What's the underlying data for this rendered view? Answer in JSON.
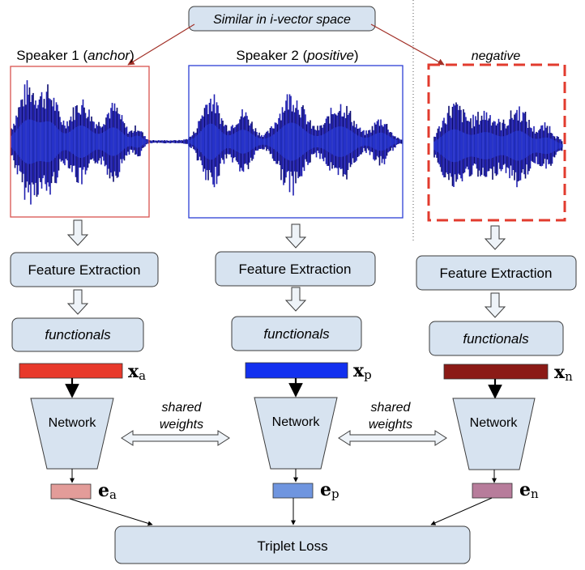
{
  "top_label": "Similar in i-vector space",
  "speakers": [
    {
      "name": "Speaker 1",
      "role": "anchor"
    },
    {
      "name": "Speaker 2",
      "role": "positive"
    },
    {
      "name": "",
      "role": "negative"
    }
  ],
  "branches": [
    {
      "feature_label": "Feature Extraction",
      "functionals_label": "functionals",
      "x_symbol": "x",
      "x_sub": "a",
      "network_label": "Network",
      "e_symbol": "e",
      "e_sub": "a"
    },
    {
      "feature_label": "Feature Extraction",
      "functionals_label": "functionals",
      "x_symbol": "x",
      "x_sub": "p",
      "network_label": "Network",
      "e_symbol": "e",
      "e_sub": "p"
    },
    {
      "feature_label": "Feature Extraction",
      "functionals_label": "functionals",
      "x_symbol": "x",
      "x_sub": "n",
      "network_label": "Network",
      "e_symbol": "e",
      "e_sub": "n"
    }
  ],
  "shared_weights": [
    "shared",
    "weights"
  ],
  "loss_label": "Triplet Loss",
  "colors": {
    "box_fill": "#d7e3f0",
    "box_stroke": "#3b3b3b",
    "wave": "#1f1fb0",
    "wave_dark": "#0a0a6e",
    "anchor_frame": "#d9534f",
    "positive_frame": "#2c3fd6",
    "negative_frame": "#e23b2e",
    "xa": "#e8392b",
    "xp": "#1230ef",
    "xn": "#8b1a16",
    "ea": "#e39c99",
    "ep": "#6f95df",
    "en": "#b77c9b",
    "pointer": "#a23027"
  }
}
